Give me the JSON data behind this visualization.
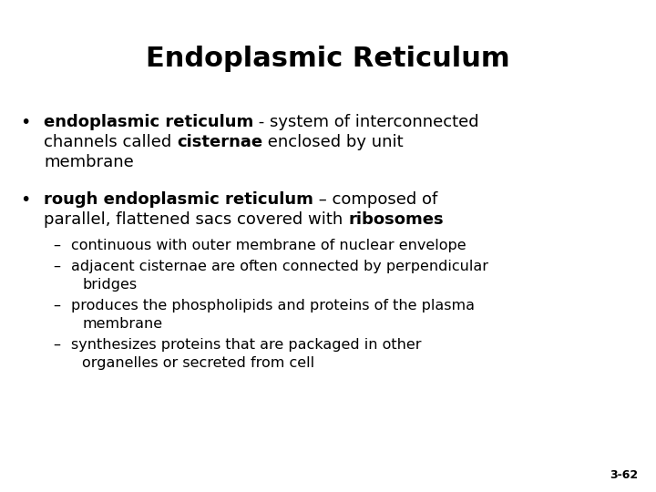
{
  "title": "Endoplasmic Reticulum",
  "background_color": "#ffffff",
  "text_color": "#000000",
  "title_fontsize": 22,
  "body_fontsize": 13,
  "sub_fontsize": 11.5,
  "slide_number": "3-62",
  "bullet1_bold": "endoplasmic reticulum",
  "bullet1_norm1": " - system of interconnected",
  "bullet1_line2a": "channels called ",
  "bullet1_bold2": "cisternae",
  "bullet1_line2b": " enclosed by unit",
  "bullet1_line3": "membrane",
  "bullet2_bold": "rough endoplasmic reticulum",
  "bullet2_norm1": " – composed of",
  "bullet2_line2a": "parallel, flattened sacs covered with ",
  "bullet2_bold2": "ribosomes",
  "sub1": "continuous with outer membrane of nuclear envelope",
  "sub2_line1": "adjacent cisternae are often connected by perpendicular",
  "sub2_line2": "bridges",
  "sub3_line1": "produces the phospholipids and proteins of the plasma",
  "sub3_line2": "membrane",
  "sub4_line1": "synthesizes proteins that are packaged in other",
  "sub4_line2": "organelles or secreted from cell",
  "slide_number_text": "3-62"
}
